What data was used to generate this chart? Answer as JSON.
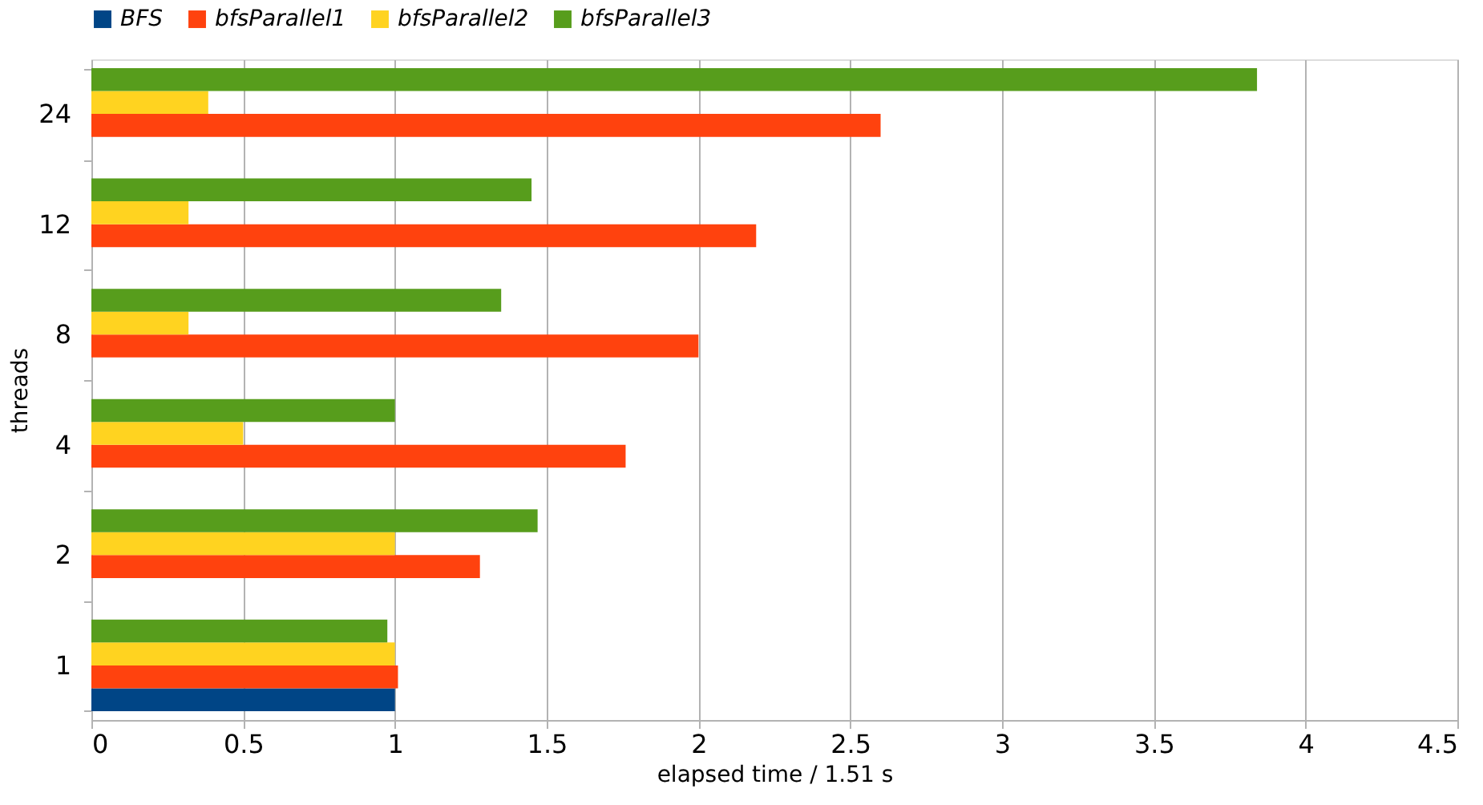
{
  "chart_data": {
    "type": "bar",
    "orientation": "horizontal",
    "categories": [
      "24",
      "12",
      "8",
      "4",
      "2",
      "1"
    ],
    "series": [
      {
        "name": "BFS",
        "color": "#004586",
        "values": [
          null,
          null,
          null,
          null,
          null,
          1.0
        ]
      },
      {
        "name": "bfsParallel1",
        "color": "#ff420e",
        "values": [
          2.6,
          2.19,
          2.0,
          1.76,
          1.28,
          1.01
        ]
      },
      {
        "name": "bfsParallel2",
        "color": "#ffd320",
        "values": [
          0.385,
          0.32,
          0.32,
          0.5,
          1.0,
          1.0
        ]
      },
      {
        "name": "bfsParallel3",
        "color": "#579d1c",
        "values": [
          3.84,
          1.45,
          1.35,
          1.0,
          1.47,
          0.975
        ]
      }
    ],
    "xlim": [
      0,
      4.5
    ],
    "xticks": [
      0,
      0.5,
      1,
      1.5,
      2,
      2.5,
      3,
      3.5,
      4,
      4.5
    ],
    "xlabel": "elapsed time / 1.51 s",
    "ylabel": "threads",
    "grid": "x",
    "legend": "top"
  }
}
